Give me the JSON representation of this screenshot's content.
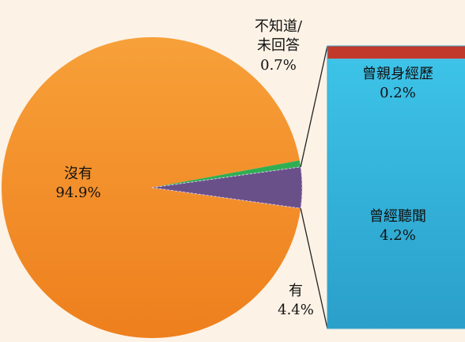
{
  "chart_data": [
    {
      "type": "pie",
      "slices": [
        {
          "label": "沒有",
          "value": 94.9,
          "value_label": "94.9%",
          "color": "#f4912c"
        },
        {
          "label": "有",
          "value": 4.4,
          "value_label": "4.4%",
          "color": "#6a5089"
        },
        {
          "label": "不知道/未回答",
          "label_lines": [
            "不知道/",
            "未回答"
          ],
          "value": 0.7,
          "value_label": "0.7%",
          "color": "#2fae54"
        }
      ]
    },
    {
      "type": "bar",
      "stacked": true,
      "parent": "有",
      "segments": [
        {
          "label": "曾親身經歷",
          "value": 0.2,
          "value_label": "0.2%",
          "color": "#c0392b"
        },
        {
          "label": "曾經聽聞",
          "value": 4.2,
          "value_label": "4.2%",
          "color": "#35b7de"
        }
      ]
    }
  ]
}
